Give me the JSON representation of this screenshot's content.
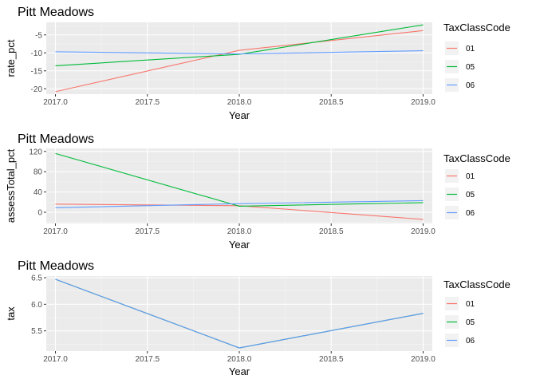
{
  "chart_data": [
    {
      "type": "line",
      "title": "Pitt Meadows",
      "xlabel": "Year",
      "ylabel": "rate_pct",
      "xlim": [
        2016.95,
        2019.05
      ],
      "ylim": [
        -21.5,
        -1.5
      ],
      "x_ticks": [
        2017.0,
        2017.5,
        2018.0,
        2018.5,
        2019.0
      ],
      "x_tick_labels": [
        "2017.0",
        "2017.5",
        "2018.0",
        "2018.5",
        "2019.0"
      ],
      "y_ticks": [
        -20,
        -15,
        -10,
        -5
      ],
      "y_tick_labels": [
        "-20",
        "-15",
        "-10",
        "-5"
      ],
      "grid": true,
      "legend": {
        "title": "TaxClassCode",
        "position": "right"
      },
      "x": [
        2017,
        2018,
        2019
      ],
      "series": [
        {
          "name": "01",
          "color": "#F8766D",
          "values": [
            -20.8,
            -9.3,
            -3.8
          ]
        },
        {
          "name": "05",
          "color": "#00BA38",
          "values": [
            -13.6,
            -10.4,
            -2.2
          ]
        },
        {
          "name": "06",
          "color": "#619CFF",
          "values": [
            -9.7,
            -10.3,
            -9.4
          ]
        }
      ]
    },
    {
      "type": "line",
      "title": "Pitt Meadows",
      "xlabel": "Year",
      "ylabel": "assessTotal_pct",
      "xlim": [
        2016.95,
        2019.05
      ],
      "ylim": [
        -22,
        126
      ],
      "x_ticks": [
        2017.0,
        2017.5,
        2018.0,
        2018.5,
        2019.0
      ],
      "x_tick_labels": [
        "2017.0",
        "2017.5",
        "2018.0",
        "2018.5",
        "2019.0"
      ],
      "y_ticks": [
        0,
        40,
        80,
        120
      ],
      "y_tick_labels": [
        "0",
        "40",
        "80",
        "120"
      ],
      "grid": true,
      "legend": {
        "title": "TaxClassCode",
        "position": "right"
      },
      "x": [
        2017,
        2018,
        2019
      ],
      "series": [
        {
          "name": "01",
          "color": "#F8766D",
          "values": [
            16,
            13,
            -14
          ]
        },
        {
          "name": "05",
          "color": "#00BA38",
          "values": [
            116,
            12,
            19
          ]
        },
        {
          "name": "06",
          "color": "#619CFF",
          "values": [
            9,
            17,
            23
          ]
        }
      ]
    },
    {
      "type": "line",
      "title": "Pitt Meadows",
      "xlabel": "Year",
      "ylabel": "tax",
      "xlim": [
        2016.95,
        2019.05
      ],
      "ylim": [
        5.12,
        6.53
      ],
      "x_ticks": [
        2017.0,
        2017.5,
        2018.0,
        2018.5,
        2019.0
      ],
      "x_tick_labels": [
        "2017.0",
        "2017.5",
        "2018.0",
        "2018.5",
        "2019.0"
      ],
      "y_ticks": [
        5.5,
        6.0,
        6.5
      ],
      "y_tick_labels": [
        "5.5",
        "6.0",
        "6.5"
      ],
      "grid": true,
      "legend": {
        "title": "TaxClassCode",
        "position": "right"
      },
      "x": [
        2017,
        2018,
        2019
      ],
      "series": [
        {
          "name": "01",
          "color": "#F8766D",
          "values": [
            6.47,
            5.18,
            5.83
          ]
        },
        {
          "name": "05",
          "color": "#00BA38",
          "values": [
            6.47,
            5.18,
            5.83
          ]
        },
        {
          "name": "06",
          "color": "#619CFF",
          "values": [
            6.47,
            5.18,
            5.83
          ]
        }
      ]
    }
  ]
}
